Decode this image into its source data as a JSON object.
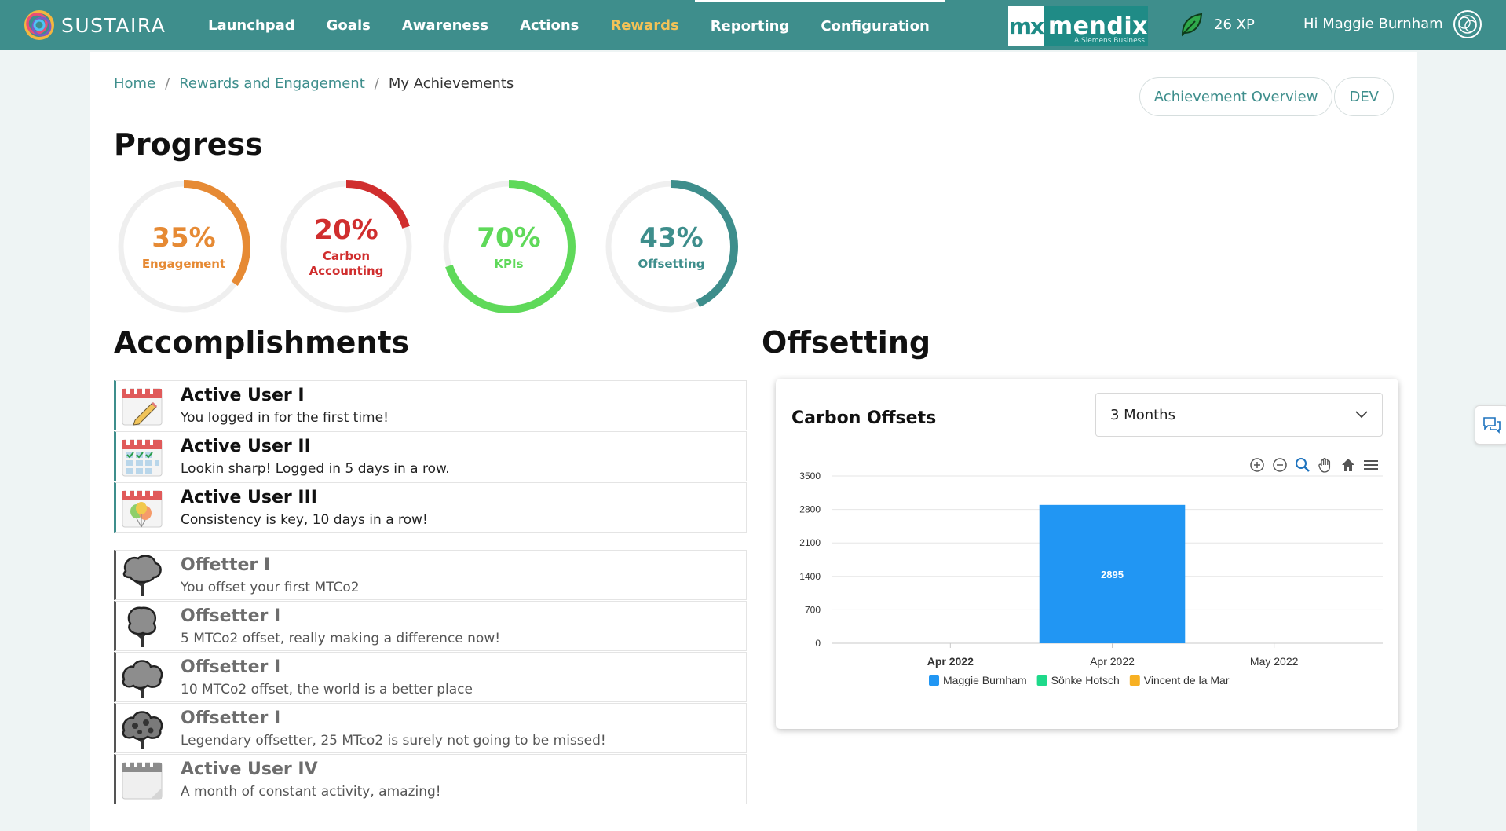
{
  "app": {
    "brand": "SUSTAIRA"
  },
  "nav": {
    "items": [
      "Launchpad",
      "Goals",
      "Awareness",
      "Actions",
      "Rewards",
      "Reporting",
      "Configuration"
    ],
    "active": "Rewards"
  },
  "header": {
    "partner_logo_main": "mendix",
    "partner_logo_mx": "mx",
    "partner_logo_sub": "A Siemens Business",
    "xp": "26 XP",
    "greeting": "Hi Maggie Burnham"
  },
  "breadcrumb": {
    "home": "Home",
    "section": "Rewards and Engagement",
    "current": "My Achievements"
  },
  "buttons": {
    "overview": "Achievement Overview",
    "dev": "DEV"
  },
  "progress": {
    "title": "Progress",
    "gauges": [
      {
        "percent": "35%",
        "value": 35,
        "label_1": "Engagement",
        "label_2": "",
        "color": "#e68a34"
      },
      {
        "percent": "20%",
        "value": 20,
        "label_1": "Carbon",
        "label_2": "Accounting",
        "color": "#d02e2e"
      },
      {
        "percent": "70%",
        "value": 70,
        "label_1": "KPIs",
        "label_2": "",
        "color": "#5fd95a"
      },
      {
        "percent": "43%",
        "value": 43,
        "label_1": "Offsetting",
        "label_2": "",
        "color": "#3e8e8c"
      }
    ]
  },
  "accomplishments": {
    "title": "Accomplishments",
    "achieved": [
      {
        "title": "Active User I",
        "desc": "You logged in for the first time!",
        "icon": "calendar-pencil-icon"
      },
      {
        "title": "Active User II",
        "desc": "Lookin sharp! Logged in 5 days in a row.",
        "icon": "calendar-checks-icon"
      },
      {
        "title": "Active User III",
        "desc": "Consistency is key, 10 days in a row!",
        "icon": "calendar-balloons-icon"
      }
    ],
    "locked": [
      {
        "title": "Offetter I",
        "desc": "You offset your first MTCo2",
        "icon": "tree-icon"
      },
      {
        "title": "Offsetter I",
        "desc": "5 MTCo2 offset, really making a difference now!",
        "icon": "tree-icon"
      },
      {
        "title": "Offsetter I",
        "desc": "10 MTCo2 offset, the world is a better place",
        "icon": "tree-icon"
      },
      {
        "title": "Offsetter I",
        "desc": "Legendary offsetter, 25 MTco2 is surely not going to be missed!",
        "icon": "tree-icon"
      },
      {
        "title": "Active User IV",
        "desc": "A month of constant activity, amazing!",
        "icon": "calendar-icon"
      }
    ]
  },
  "offsetting": {
    "title": "Offsetting",
    "card_title": "Carbon Offsets",
    "range_select": "3 Months",
    "toolbar_icons": [
      "zoom-in-icon",
      "zoom-out-icon",
      "zoom-select-icon",
      "pan-hand-icon",
      "reset-home-icon",
      "menu-icon"
    ]
  },
  "chart_data": {
    "type": "bar",
    "title": "Carbon Offsets",
    "x_labels": [
      "Apr 2022",
      "Apr 2022",
      "May 2022"
    ],
    "x_label_bold": [
      true,
      false,
      false
    ],
    "ylim": [
      0,
      3500
    ],
    "y_ticks": [
      0,
      700,
      1400,
      2100,
      2800,
      3500
    ],
    "bars": [
      {
        "x_index": 1,
        "series": "Maggie Burnham",
        "value": 2895,
        "label": "2895"
      }
    ],
    "series": [
      {
        "name": "Maggie Burnham",
        "color": "#2196f3"
      },
      {
        "name": "Sönke Hotsch",
        "color": "#1ed98a"
      },
      {
        "name": "Vincent de la Mar",
        "color": "#f7b023"
      }
    ],
    "legend": "bottom",
    "grid": true
  }
}
